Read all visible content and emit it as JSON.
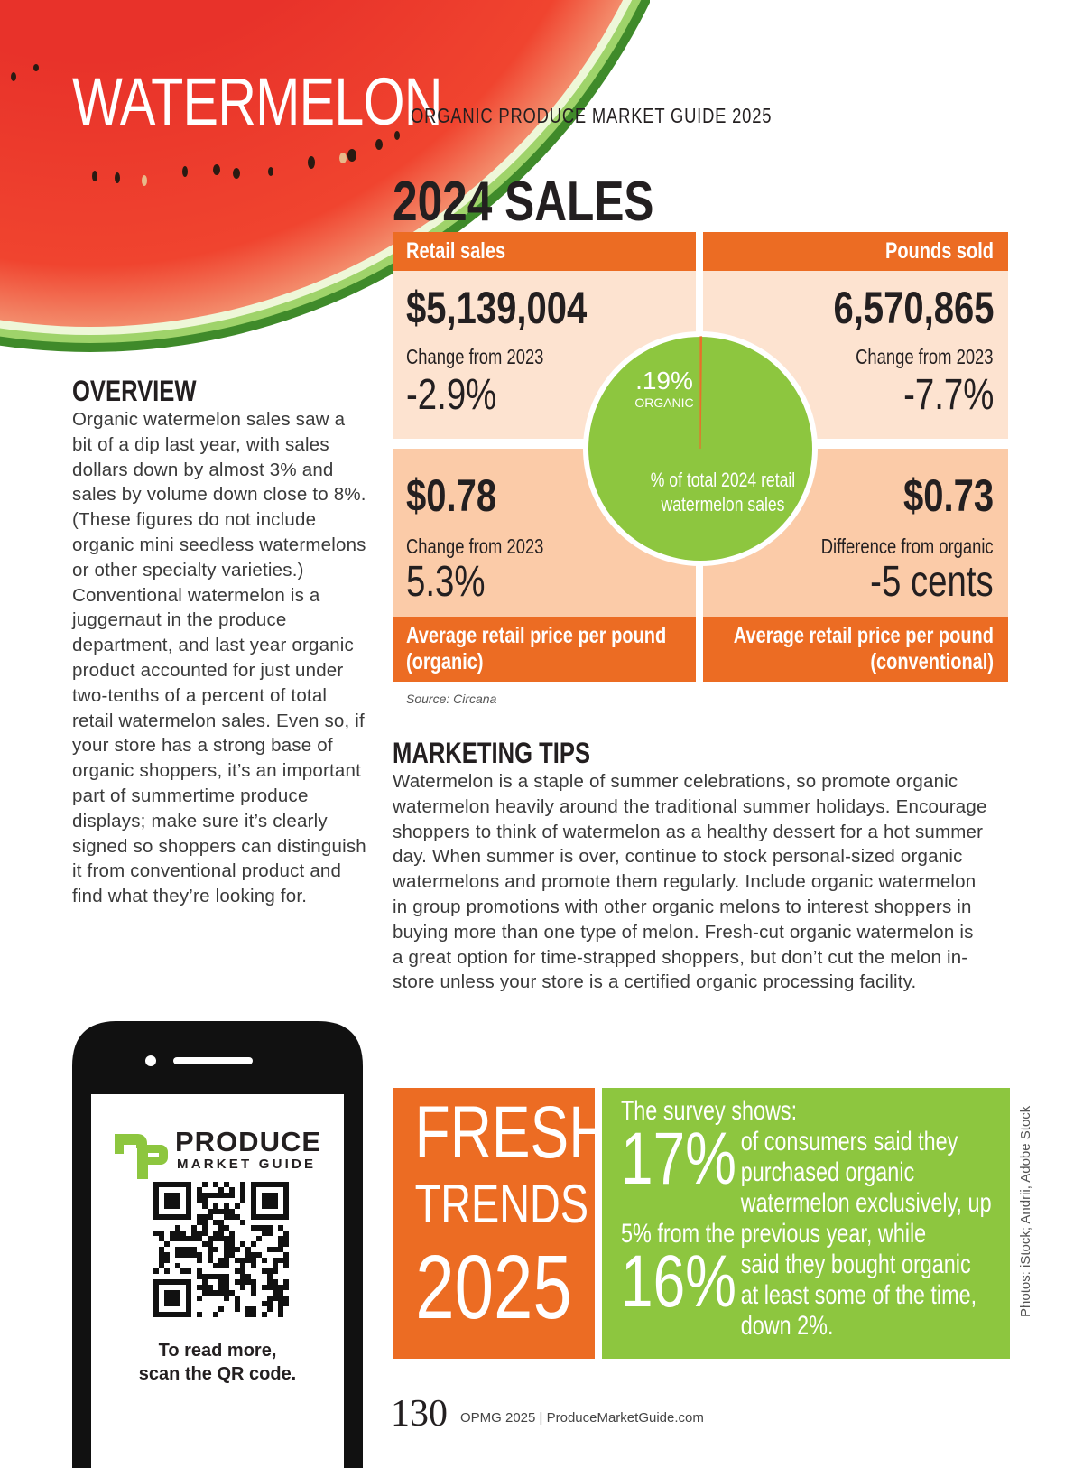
{
  "header": {
    "title": "WATERMELON",
    "subtitle": "ORGANIC PRODUCE MARKET GUIDE 2025"
  },
  "sales": {
    "title": "2024 SALES",
    "retail": {
      "label": "Retail sales",
      "value": "$5,139,004",
      "change_label": "Change from 2023",
      "change": "-2.9%"
    },
    "pounds": {
      "label": "Pounds sold",
      "value": "6,570,865",
      "change_label": "Change from 2023",
      "change": "-7.7%"
    },
    "organic_price": {
      "value": "$0.78",
      "change_label": "Change from 2023",
      "change": "5.3%",
      "label": "Average retail price per pound (organic)"
    },
    "conventional_price": {
      "value": "$0.73",
      "change_label": "Difference from organic",
      "change": "-5 cents",
      "label": "Average retail price per pound (conventional)"
    },
    "pie": {
      "value": 0.19,
      "value_label": ".19%",
      "label": "ORGANIC",
      "caption": "% of total 2024 retail watermelon sales"
    },
    "source": "Source: Circana"
  },
  "overview": {
    "heading": "OVERVIEW",
    "text": "Organic watermelon sales saw a bit of a dip last year, with sales dollars down by almost 3% and sales by volume down close to 8%. (These figures do not include organic mini seedless watermelons or other specialty varieties.) Conventional watermelon is a juggernaut in the produce department, and last year organic product accounted for just under two-tenths of a percent of total retail watermelon sales. Even so, if your store has a strong base of organic shoppers, it’s an important part of summertime produce displays; make sure it’s clearly signed so shoppers can distinguish it from conventional product and find what they’re looking for."
  },
  "marketing_tips": {
    "heading": "MARKETING TIPS",
    "text": "Watermelon is a staple of summer celebrations, so promote organic watermelon heavily around the traditional summer holidays. Encourage shoppers to think of watermelon as a healthy dessert for a hot summer day. When summer is over, continue to stock personal-sized organic watermelons and promote them regularly. Include organic watermelon in group promotions with other organic melons to interest shoppers in buying more than one type of melon. Fresh-cut organic watermelon is a great option for time-strapped shoppers, but don’t cut the melon in-store unless your store is a certified organic processing facility."
  },
  "fresh_trends": {
    "title": [
      "FRESH",
      "TRENDS",
      "2025"
    ],
    "intro": "The survey shows:",
    "stats": [
      {
        "figure": "17%",
        "text": "of consumers said they purchased organic watermelon exclusively, up 5% from the previous year, while"
      },
      {
        "figure": "16%",
        "text": "said they bought organic at least some of the time, down 2%."
      }
    ]
  },
  "promo": {
    "brand": "PRODUCE",
    "brand_sub": "MARKET GUIDE",
    "lines": [
      "To read more,",
      "scan the QR code."
    ]
  },
  "footer": {
    "page": "130",
    "text": "OPMG 2025 | ProduceMarketGuide.com"
  },
  "credit": "Photos: iStock; Andrii, Adobe Stock"
}
